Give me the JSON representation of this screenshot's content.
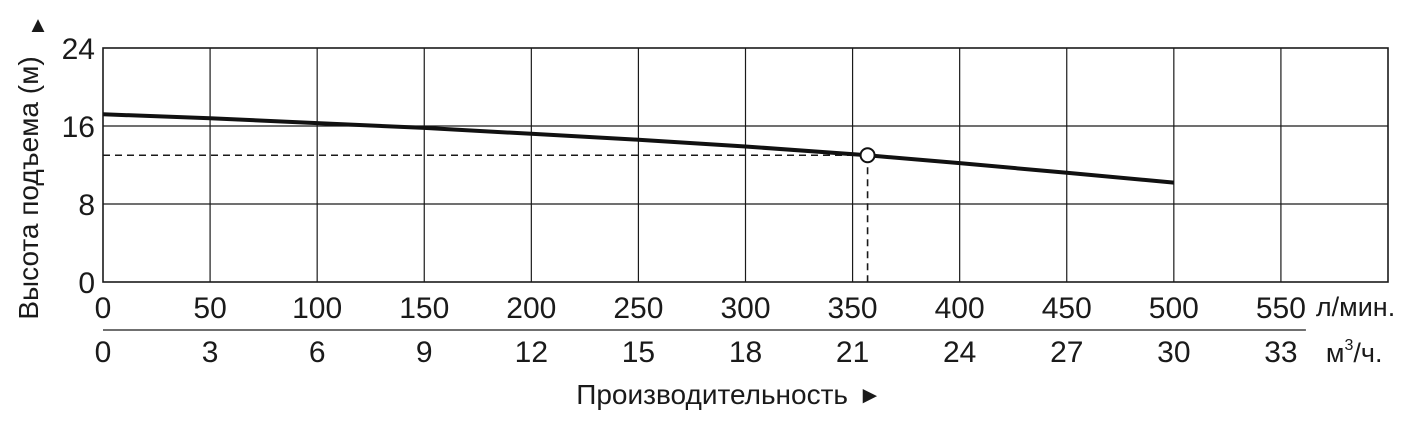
{
  "chart_data": {
    "type": "line",
    "ylabel": "Высота подъема (м)",
    "xlabel": "Производительность",
    "y_arrow": "▲",
    "x_arrow": "►",
    "ylim": [
      0,
      24
    ],
    "y_ticks": [
      "0",
      "8",
      "16",
      "24"
    ],
    "x_lpm": {
      "unit": "л/мин.",
      "ticks": [
        0,
        50,
        100,
        150,
        200,
        250,
        300,
        350,
        400,
        450,
        500,
        550
      ],
      "range": [
        0,
        600
      ]
    },
    "x_m3h": {
      "unit_base": "м",
      "unit_sup": "3",
      "unit_tail": "/ч.",
      "ticks": [
        "0",
        "3",
        "6",
        "9",
        "12",
        "15",
        "18",
        "21",
        "24",
        "27",
        "30",
        "33"
      ]
    },
    "grid": true,
    "series": [
      {
        "x": [
          0,
          50,
          100,
          150,
          200,
          250,
          300,
          357,
          400,
          450,
          500
        ],
        "y": [
          17.2,
          16.8,
          16.3,
          15.8,
          15.2,
          14.6,
          13.9,
          13.0,
          12.2,
          11.2,
          10.2
        ]
      }
    ],
    "operating_point": {
      "x": 357,
      "y": 13.0
    },
    "colors": {
      "line": "#111111",
      "grid": "#1a1a1a",
      "text": "#1a1a1a"
    }
  }
}
